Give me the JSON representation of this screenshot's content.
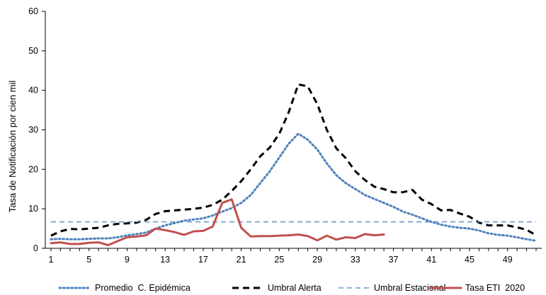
{
  "chart_data": {
    "type": "line",
    "title": "",
    "xlabel": "",
    "ylabel": "Tasa de Notificación por cien mil",
    "xlim": [
      1,
      52
    ],
    "ylim": [
      0,
      60
    ],
    "x_ticks": [
      1,
      5,
      9,
      13,
      17,
      21,
      25,
      29,
      33,
      37,
      41,
      45,
      49
    ],
    "y_ticks": [
      0,
      10,
      20,
      30,
      40,
      50,
      60
    ],
    "grid": false,
    "legend_position": "bottom",
    "series": [
      {
        "name": "Promedio  C. Epidémica",
        "style": "dotted",
        "color": "#4f81bd",
        "x": [
          1,
          2,
          3,
          4,
          5,
          6,
          7,
          8,
          9,
          10,
          11,
          12,
          13,
          14,
          15,
          16,
          17,
          18,
          19,
          20,
          21,
          22,
          23,
          24,
          25,
          26,
          27,
          28,
          29,
          30,
          31,
          32,
          33,
          34,
          35,
          36,
          37,
          38,
          39,
          40,
          41,
          42,
          43,
          44,
          45,
          46,
          47,
          48,
          49,
          50,
          51,
          52
        ],
        "values": [
          2.3,
          2.4,
          2.3,
          2.3,
          2.4,
          2.5,
          2.5,
          2.8,
          3.3,
          3.6,
          4.0,
          5.0,
          5.8,
          6.4,
          7.0,
          7.3,
          7.6,
          8.3,
          9.3,
          10.2,
          11.5,
          13.5,
          16.5,
          19.5,
          23.0,
          26.5,
          29.0,
          27.5,
          25.0,
          21.5,
          18.5,
          16.5,
          15.0,
          13.5,
          12.5,
          11.5,
          10.5,
          9.3,
          8.5,
          7.6,
          6.7,
          6.0,
          5.5,
          5.2,
          5.0,
          4.5,
          3.8,
          3.4,
          3.2,
          2.8,
          2.3,
          1.9
        ]
      },
      {
        "name": "Umbral Alerta",
        "style": "dashed",
        "color": "#000000",
        "x": [
          1,
          2,
          3,
          4,
          5,
          6,
          7,
          8,
          9,
          10,
          11,
          12,
          13,
          14,
          15,
          16,
          17,
          18,
          19,
          20,
          21,
          22,
          23,
          24,
          25,
          26,
          27,
          28,
          29,
          30,
          31,
          32,
          33,
          34,
          35,
          36,
          37,
          38,
          39,
          40,
          41,
          42,
          43,
          44,
          45,
          46,
          47,
          48,
          49,
          50,
          51,
          52
        ],
        "values": [
          3.2,
          4.3,
          4.9,
          4.8,
          5.0,
          5.2,
          5.8,
          6.2,
          6.3,
          6.5,
          7.2,
          8.7,
          9.4,
          9.6,
          9.8,
          10.0,
          10.3,
          11.0,
          12.3,
          14.5,
          17.0,
          20.0,
          23.3,
          25.5,
          29.0,
          34.5,
          41.5,
          41.0,
          36.5,
          30.0,
          25.3,
          22.8,
          19.5,
          17.3,
          15.6,
          15.0,
          14.2,
          14.2,
          14.8,
          12.3,
          11.2,
          9.6,
          9.7,
          8.8,
          8.0,
          6.5,
          5.8,
          5.8,
          5.8,
          5.3,
          4.7,
          3.3
        ]
      },
      {
        "name": "Umbral Estacional",
        "style": "dashed-thin",
        "color": "#4f81bd",
        "x": [
          1,
          52
        ],
        "values": [
          6.7,
          6.7
        ]
      },
      {
        "name": "Tasa ETI  2020",
        "style": "solid",
        "color": "#c0504d",
        "x": [
          1,
          2,
          3,
          4,
          5,
          6,
          7,
          8,
          9,
          10,
          11,
          12,
          13,
          14,
          15,
          16,
          17,
          18,
          19,
          20,
          21,
          22,
          23,
          24,
          25,
          26,
          27,
          28,
          29,
          30,
          31,
          32,
          33,
          34,
          35,
          36
        ],
        "values": [
          1.3,
          1.5,
          1.1,
          1.1,
          1.4,
          1.5,
          0.8,
          1.8,
          2.8,
          3.0,
          3.3,
          5.0,
          4.6,
          4.1,
          3.4,
          4.3,
          4.4,
          5.5,
          11.5,
          12.4,
          5.2,
          3.0,
          3.1,
          3.1,
          3.2,
          3.3,
          3.5,
          3.1,
          2.0,
          3.2,
          2.2,
          2.8,
          2.6,
          3.6,
          3.3,
          3.5
        ]
      }
    ]
  }
}
